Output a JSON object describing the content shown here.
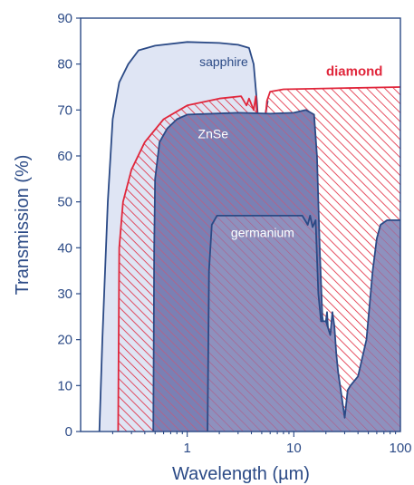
{
  "chart_data": {
    "type": "area",
    "xlabel": "Wavelength (µm)",
    "ylabel": "Transmission (%)",
    "xscale": "log",
    "xlim": [
      0.1,
      100
    ],
    "ylim": [
      0,
      90
    ],
    "xticks": [
      {
        "value": 1,
        "label": "1"
      },
      {
        "value": 10,
        "label": "10"
      },
      {
        "value": 100,
        "label": "100"
      }
    ],
    "yticks": [
      {
        "value": 0,
        "label": "0"
      },
      {
        "value": 10,
        "label": "10"
      },
      {
        "value": 20,
        "label": "20"
      },
      {
        "value": 30,
        "label": "30"
      },
      {
        "value": 40,
        "label": "40"
      },
      {
        "value": 50,
        "label": "50"
      },
      {
        "value": 60,
        "label": "60"
      },
      {
        "value": 70,
        "label": "70"
      },
      {
        "value": 80,
        "label": "80"
      },
      {
        "value": 90,
        "label": "90"
      }
    ],
    "grid": false,
    "legend": "none (series labeled directly on chart)",
    "series": [
      {
        "name": "sapphire",
        "color": "#2b4a86",
        "fill": "#dfe5f4",
        "fill_style": "solid",
        "points": [
          [
            0.15,
            0
          ],
          [
            0.16,
            20
          ],
          [
            0.18,
            50
          ],
          [
            0.2,
            68
          ],
          [
            0.23,
            76
          ],
          [
            0.28,
            80
          ],
          [
            0.35,
            83
          ],
          [
            0.5,
            84
          ],
          [
            1,
            84.8
          ],
          [
            2,
            84.6
          ],
          [
            3,
            84.2
          ],
          [
            3.8,
            83.5
          ],
          [
            4.2,
            80
          ],
          [
            4.5,
            72
          ],
          [
            4.8,
            62
          ],
          [
            5.0,
            61
          ],
          [
            5.3,
            68
          ],
          [
            5.7,
            72
          ]
        ]
      },
      {
        "name": "diamond",
        "color": "#e0263b",
        "fill": "#e0263b",
        "fill_style": "diagonal-hatch",
        "points": [
          [
            0.225,
            0
          ],
          [
            0.23,
            40
          ],
          [
            0.25,
            50
          ],
          [
            0.3,
            57
          ],
          [
            0.4,
            63
          ],
          [
            0.6,
            68
          ],
          [
            1,
            71
          ],
          [
            2,
            72.5
          ],
          [
            3.2,
            73
          ],
          [
            3.6,
            71
          ],
          [
            3.8,
            72.5
          ],
          [
            4.2,
            70
          ],
          [
            4.4,
            73
          ],
          [
            4.6,
            66
          ],
          [
            4.8,
            63
          ],
          [
            5.0,
            61
          ],
          [
            5.2,
            64
          ],
          [
            5.6,
            72
          ],
          [
            6,
            74
          ],
          [
            8,
            74.5
          ],
          [
            100,
            75
          ]
        ]
      },
      {
        "name": "ZnSe",
        "color": "#2b4a86",
        "fill": "#8086b6",
        "fill_style": "diagonal-hatch",
        "points": [
          [
            0.48,
            0
          ],
          [
            0.49,
            40
          ],
          [
            0.5,
            55
          ],
          [
            0.55,
            63
          ],
          [
            0.65,
            66
          ],
          [
            0.8,
            68
          ],
          [
            1,
            69
          ],
          [
            3,
            69.4
          ],
          [
            6,
            69.2
          ],
          [
            10,
            69.4
          ],
          [
            13,
            70
          ],
          [
            15.5,
            69
          ],
          [
            16.5,
            60
          ],
          [
            17.5,
            40
          ],
          [
            18.5,
            25
          ],
          [
            19.5,
            22
          ],
          [
            20.5,
            26
          ],
          [
            21,
            22
          ],
          [
            22,
            0
          ]
        ]
      },
      {
        "name": "germanium",
        "color": "#2b4a86",
        "fill": "#8d8fbd",
        "fill_style": "diagonal-hatch",
        "points": [
          [
            1.55,
            0
          ],
          [
            1.6,
            35
          ],
          [
            1.7,
            45
          ],
          [
            1.9,
            47
          ],
          [
            3,
            47
          ],
          [
            8,
            47
          ],
          [
            12,
            47
          ],
          [
            13.5,
            45
          ],
          [
            14.2,
            47
          ],
          [
            15,
            44.5
          ],
          [
            16,
            46
          ],
          [
            17,
            30
          ],
          [
            18,
            24
          ],
          [
            20,
            24
          ],
          [
            22,
            21
          ],
          [
            23,
            26
          ],
          [
            24,
            23
          ],
          [
            25,
            17
          ],
          [
            26,
            13
          ],
          [
            28,
            8
          ],
          [
            30,
            3
          ],
          [
            32,
            9
          ],
          [
            34,
            10
          ],
          [
            40,
            12
          ],
          [
            48,
            20
          ],
          [
            55,
            35
          ],
          [
            60,
            42
          ],
          [
            65,
            45
          ],
          [
            75,
            46
          ],
          [
            100,
            46
          ]
        ]
      }
    ],
    "annotations": [
      {
        "text": "sapphire",
        "series": "sapphire",
        "x": 2.2,
        "y": 79.5,
        "color": "#2b4a86"
      },
      {
        "text": "diamond",
        "series": "diamond",
        "x": 37,
        "y": 77.5,
        "color": "#e0263b"
      },
      {
        "text": "ZnSe",
        "series": "ZnSe",
        "x": 1.75,
        "y": 63.8,
        "color": "#ffffff"
      },
      {
        "text": "germanium",
        "series": "germanium",
        "x": 5.1,
        "y": 42.3,
        "color": "#ffffff"
      }
    ]
  }
}
